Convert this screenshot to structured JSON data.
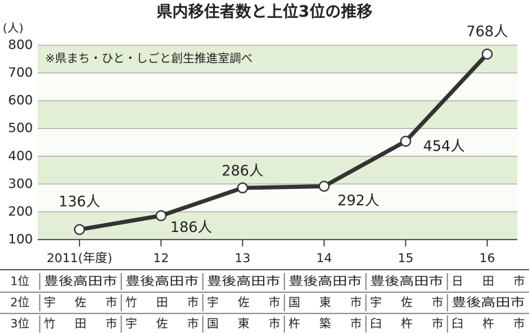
{
  "chart_data": {
    "type": "line",
    "title": "県内移住者数と上位3位の推移",
    "y_label": "(人)",
    "note": "※県まち・ひと・しごと創生推進室調べ",
    "categories": [
      "2011(年度)",
      "12",
      "13",
      "14",
      "15",
      "16"
    ],
    "values": [
      136,
      186,
      286,
      292,
      454,
      768
    ],
    "value_labels": [
      "136人",
      "186人",
      "286人",
      "292人",
      "454人",
      "768人"
    ],
    "color": "#333333",
    "band_color": "#e3eed6",
    "ylim": [
      100,
      800
    ],
    "yticks": [
      100,
      200,
      300,
      400,
      500,
      600,
      700,
      800
    ],
    "grid": true
  },
  "table": {
    "rows": [
      {
        "rank": "1位",
        "cells": [
          "豊後高田市",
          "豊後高田市",
          "豊後高田市",
          "豊後高田市",
          "豊後高田市",
          "日田市"
        ]
      },
      {
        "rank": "2位",
        "cells": [
          "宇佐市",
          "竹田市",
          "宇佐市",
          "国東市",
          "宇佐市",
          "豊後高田市"
        ]
      },
      {
        "rank": "3位",
        "cells": [
          "竹田市",
          "宇佐市",
          "国東市",
          "杵築市",
          "臼杵市",
          "臼杵市"
        ]
      }
    ]
  }
}
